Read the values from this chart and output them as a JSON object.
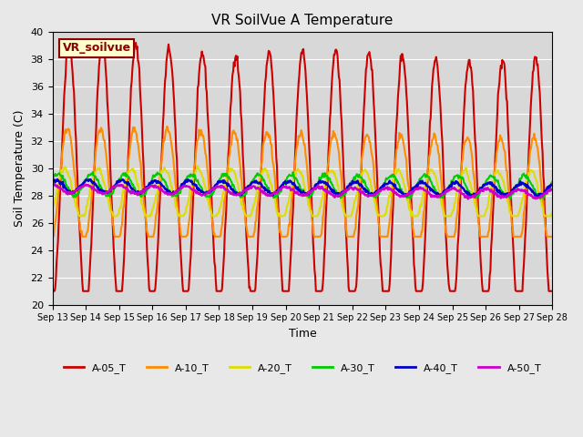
{
  "title": "VR SoilVue A Temperature",
  "xlabel": "Time",
  "ylabel": "Soil Temperature (C)",
  "ylim": [
    20,
    40
  ],
  "annotation_text": "VR_soilvue",
  "background_color": "#e8e8e8",
  "plot_bg_color": "#d8d8d8",
  "grid_color": "#ffffff",
  "series": {
    "A-05_T": {
      "color": "#cc0000",
      "lw": 1.5
    },
    "A-10_T": {
      "color": "#ff8c00",
      "lw": 1.5
    },
    "A-20_T": {
      "color": "#dddd00",
      "lw": 1.5
    },
    "A-30_T": {
      "color": "#00cc00",
      "lw": 1.5
    },
    "A-40_T": {
      "color": "#0000cc",
      "lw": 1.8
    },
    "A-50_T": {
      "color": "#cc00cc",
      "lw": 1.8
    }
  },
  "x_tick_labels": [
    "Sep 13",
    "Sep 14",
    "Sep 15",
    "Sep 16",
    "Sep 17",
    "Sep 18",
    "Sep 19",
    "Sep 20",
    "Sep 21",
    "Sep 22",
    "Sep 23",
    "Sep 24",
    "Sep 25",
    "Sep 26",
    "Sep 27",
    "Sep 28"
  ],
  "legend_entries": [
    "A-05_T",
    "A-10_T",
    "A-20_T",
    "A-30_T",
    "A-40_T",
    "A-50_T"
  ]
}
